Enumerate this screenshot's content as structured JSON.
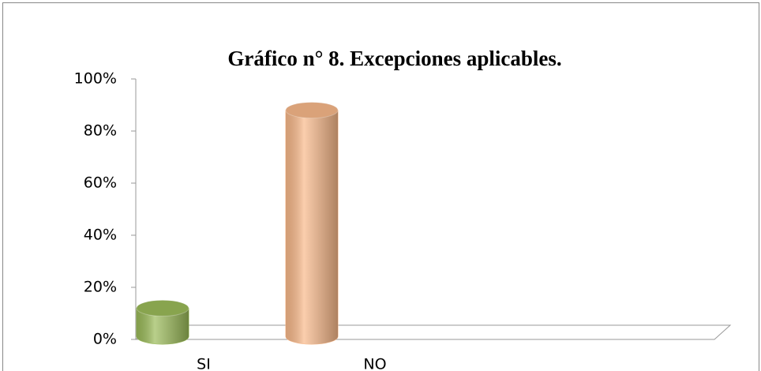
{
  "chart_data": {
    "type": "bar",
    "title": "Gráfico n° 8. Excepciones aplicables.",
    "categories": [
      "SI",
      "NO"
    ],
    "values": [
      12,
      88
    ],
    "colors": [
      "#9bbb59",
      "#f9b98a"
    ],
    "ylim": [
      0,
      100
    ],
    "yticks": [
      {
        "value": 0,
        "label": "0%"
      },
      {
        "value": 20,
        "label": "20%"
      },
      {
        "value": 40,
        "label": "40%"
      },
      {
        "value": 60,
        "label": "60%"
      },
      {
        "value": 80,
        "label": "80%"
      },
      {
        "value": 100,
        "label": "100%"
      }
    ],
    "grid": false
  }
}
